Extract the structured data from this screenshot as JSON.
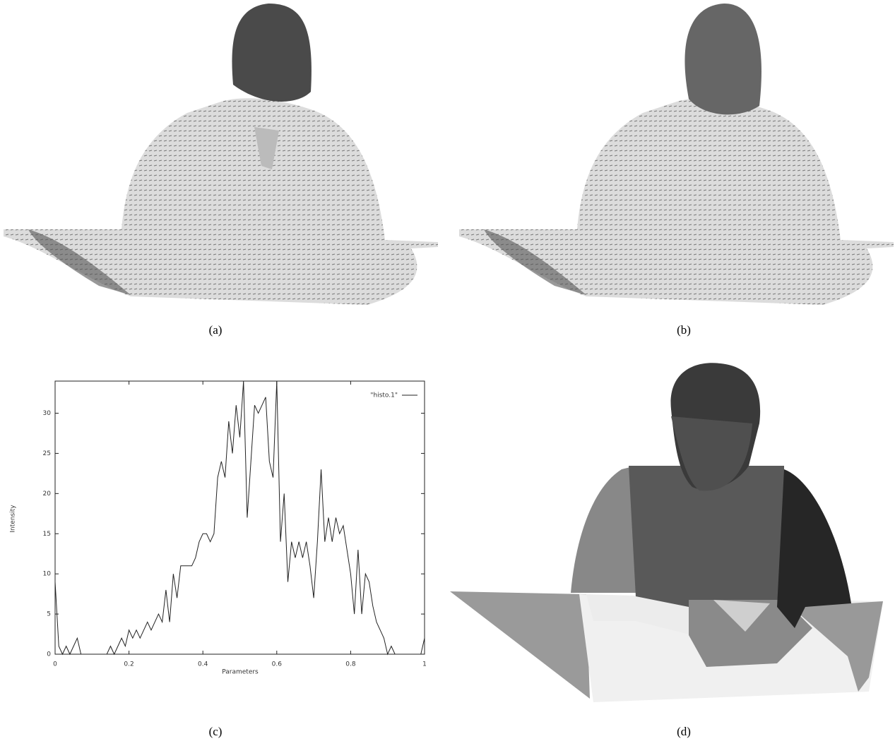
{
  "captions": [
    "(a)",
    "(b)",
    "(c)",
    "(d)"
  ],
  "chart_data": {
    "type": "line",
    "x_label": "Parameters",
    "y_label": "Intensity",
    "x": [
      0,
      0.01,
      0.02,
      0.03,
      0.04,
      0.05,
      0.06,
      0.07,
      0.08,
      0.09,
      0.1,
      0.11,
      0.12,
      0.13,
      0.14,
      0.15,
      0.16,
      0.17,
      0.18,
      0.19,
      0.2,
      0.21,
      0.22,
      0.23,
      0.24,
      0.25,
      0.26,
      0.27,
      0.28,
      0.29,
      0.3,
      0.31,
      0.32,
      0.33,
      0.34,
      0.35,
      0.36,
      0.37,
      0.38,
      0.39,
      0.4,
      0.41,
      0.42,
      0.43,
      0.44,
      0.45,
      0.46,
      0.47,
      0.48,
      0.49,
      0.5,
      0.51,
      0.52,
      0.53,
      0.54,
      0.55,
      0.56,
      0.57,
      0.58,
      0.59,
      0.6,
      0.61,
      0.62,
      0.63,
      0.64,
      0.65,
      0.66,
      0.67,
      0.68,
      0.69,
      0.7,
      0.71,
      0.72,
      0.73,
      0.74,
      0.75,
      0.76,
      0.77,
      0.78,
      0.79,
      0.8,
      0.81,
      0.82,
      0.83,
      0.84,
      0.85,
      0.86,
      0.87,
      0.88,
      0.89,
      0.9,
      0.91,
      0.92,
      0.93,
      0.94,
      0.95,
      0.96,
      0.97,
      0.98,
      0.99,
      1
    ],
    "series": [
      {
        "name": "\"histo.1\"",
        "color": "#222222",
        "values": [
          9,
          1,
          0,
          1,
          0,
          1,
          2,
          0,
          0,
          0,
          0,
          0,
          0,
          0,
          0,
          1,
          0,
          1,
          2,
          1,
          3,
          2,
          3,
          2,
          3,
          4,
          3,
          4,
          5,
          4,
          8,
          4,
          10,
          7,
          11,
          11,
          11,
          11,
          12,
          14,
          15,
          15,
          14,
          15,
          22,
          24,
          22,
          29,
          25,
          31,
          27,
          34,
          17,
          24,
          31,
          30,
          31,
          32,
          24,
          22,
          34,
          14,
          20,
          9,
          14,
          12,
          14,
          12,
          14,
          11,
          7,
          14,
          23,
          14,
          17,
          14,
          17,
          15,
          16,
          13,
          10,
          5,
          13,
          5,
          10,
          9,
          6,
          4,
          3,
          2,
          0,
          1,
          0,
          0,
          0,
          0,
          0,
          0,
          0,
          0,
          2
        ]
      }
    ],
    "xlim": [
      0,
      1
    ],
    "xticks": [
      0,
      0.2,
      0.4,
      0.6,
      0.8,
      1
    ],
    "ylim": [
      0,
      34
    ],
    "yticks": [
      0,
      5,
      10,
      15,
      20,
      25,
      30
    ],
    "legend": "top-right"
  }
}
